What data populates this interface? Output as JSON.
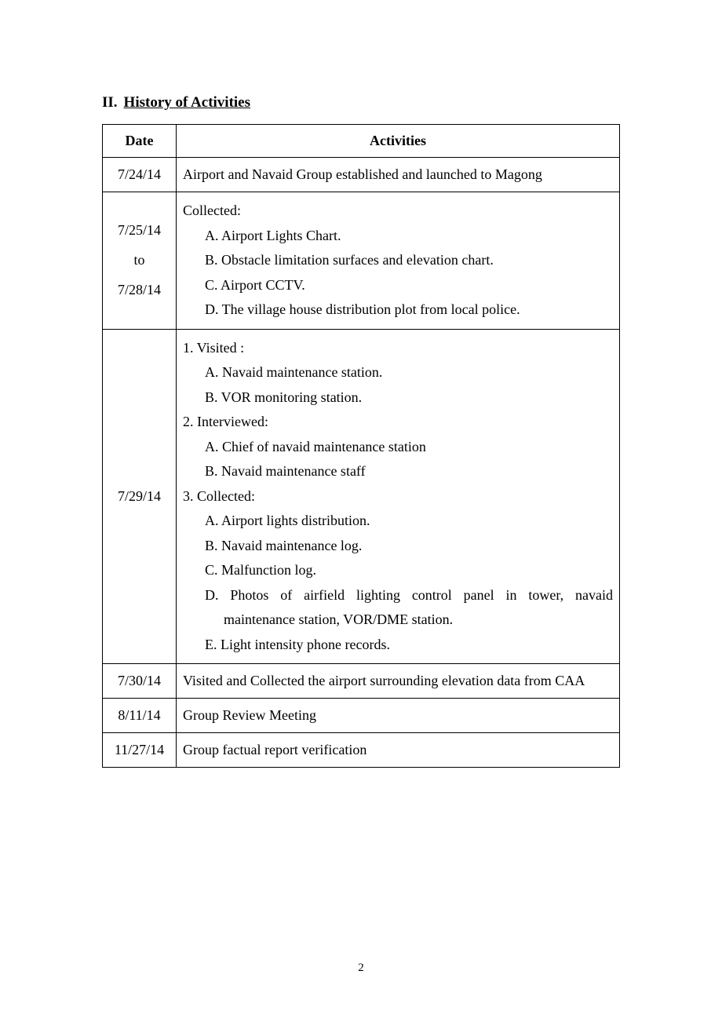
{
  "heading": {
    "number": "II.",
    "title": "History of Activities"
  },
  "table": {
    "headers": {
      "col1": "Date",
      "col2": "Activities"
    },
    "rows": {
      "r1": {
        "date": "7/24/14",
        "activity": "Airport and Navaid Group established and launched to Magong"
      },
      "r2": {
        "date_line1": "7/25/14",
        "date_line2": "to",
        "date_line3": "7/28/14",
        "intro": "Collected:",
        "items": {
          "a": "A.  Airport Lights Chart.",
          "b": "B.  Obstacle limitation surfaces and elevation chart.",
          "c": "C.  Airport CCTV.",
          "d": "D.  The village house distribution plot from local police."
        }
      },
      "r3": {
        "date": "7/29/14",
        "sec1_title": "1.  Visited :",
        "sec1_a": "A.  Navaid maintenance station.",
        "sec1_b": "B.  VOR monitoring station.",
        "sec2_title": "2.  Interviewed:",
        "sec2_a": "A.  Chief of navaid maintenance station",
        "sec2_b": "B.  Navaid maintenance staff",
        "sec3_title": "3.  Collected:",
        "sec3_a": "A.  Airport lights distribution.",
        "sec3_b": "B.  Navaid maintenance log.",
        "sec3_c": "C.  Malfunction log.",
        "sec3_d": "D. Photos of airfield lighting control panel in tower, navaid maintenance station, VOR/DME station.",
        "sec3_e": "E.   Light intensity phone records."
      },
      "r4": {
        "date": "7/30/14",
        "activity": "Visited and Collected the airport surrounding elevation data from CAA"
      },
      "r5": {
        "date": "8/11/14",
        "activity": "Group Review Meeting"
      },
      "r6": {
        "date": "11/27/14",
        "activity": "Group factual report verification"
      }
    }
  },
  "page_number": "2"
}
